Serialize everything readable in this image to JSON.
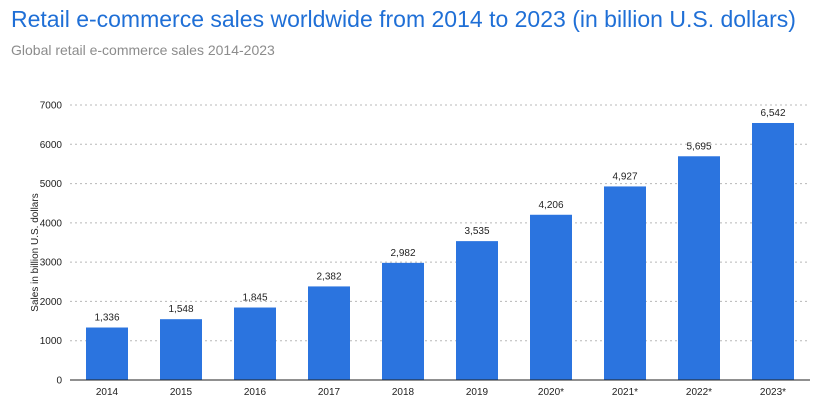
{
  "header": {
    "title": "Retail e-commerce sales worldwide from 2014 to 2023 (in billion U.S. dollars)",
    "subtitle": "Global retail e-commerce sales 2014-2023"
  },
  "chart_data": {
    "type": "bar",
    "title": "Retail e-commerce sales worldwide from 2014 to 2023 (in billion U.S. dollars)",
    "subtitle": "Global retail e-commerce sales 2014-2023",
    "categories": [
      "2014",
      "2015",
      "2016",
      "2017",
      "2018",
      "2019",
      "2020*",
      "2021*",
      "2022*",
      "2023*"
    ],
    "values": [
      1336,
      1548,
      1845,
      2382,
      2982,
      3535,
      4206,
      4927,
      5695,
      6542
    ],
    "value_labels": [
      "1,336",
      "1,548",
      "1,845",
      "2,382",
      "2,982",
      "3,535",
      "4,206",
      "4,927",
      "5,695",
      "6,542"
    ],
    "ylabel": "Sales in billion U.S. dollars",
    "xlabel": "",
    "ylim": [
      0,
      7000
    ],
    "yticks": [
      0,
      1000,
      2000,
      3000,
      4000,
      5000,
      6000,
      7000
    ],
    "grid": true,
    "colors": {
      "bar": "#2b74df",
      "grid": "#b8b8b8",
      "axis": "#222222"
    }
  }
}
